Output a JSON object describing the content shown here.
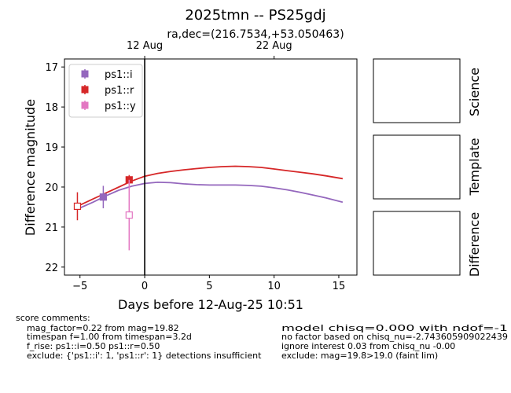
{
  "title": "2025tmn -- PS25gdj",
  "subtitle": "ra,dec=(216.7534,+53.050463)",
  "chart_data": {
    "type": "scatter",
    "xlabel": "Days before 12-Aug-25 10:51",
    "ylabel": "Difference magnitude",
    "xlim": [
      -6.2,
      16.4
    ],
    "ylim": [
      22.2,
      16.8
    ],
    "y_inverted": true,
    "x_ticks": [
      -5,
      0,
      5,
      10,
      15
    ],
    "y_ticks": [
      17,
      18,
      19,
      20,
      21,
      22
    ],
    "top_axis_ticks": [
      {
        "x": 0,
        "label": "12 Aug"
      },
      {
        "x": 10,
        "label": "22 Aug"
      }
    ],
    "vline_x": 0,
    "legend_position": "top-left",
    "series": [
      {
        "name": "ps1::i",
        "color": "#9467bd",
        "marker": "filled-square",
        "points": [
          {
            "x": -3.2,
            "y": 20.25,
            "yerr": 0.28
          }
        ]
      },
      {
        "name": "ps1::r",
        "color": "#d62728",
        "marker": "mixed-square",
        "points": [
          {
            "x": -5.2,
            "y": 20.48,
            "yerr": 0.35,
            "filled": false
          },
          {
            "x": -1.2,
            "y": 19.82,
            "yerr": 0.12,
            "filled": true
          }
        ]
      },
      {
        "name": "ps1::y",
        "color": "#e377c2",
        "marker": "open-square",
        "points": [
          {
            "x": -1.2,
            "y": 20.7,
            "yerr": 0.88
          }
        ]
      }
    ],
    "model_curves": [
      {
        "series": "ps1::r",
        "color": "#d62728",
        "x": [
          -5.2,
          -4,
          -3,
          -2,
          -1,
          0,
          1,
          2,
          3,
          4,
          5,
          6,
          7,
          8,
          9,
          10,
          11,
          12,
          13,
          14,
          15.3
        ],
        "y": [
          20.48,
          20.3,
          20.15,
          20.0,
          19.85,
          19.73,
          19.66,
          19.61,
          19.57,
          19.54,
          19.51,
          19.49,
          19.48,
          19.49,
          19.51,
          19.55,
          19.59,
          19.63,
          19.67,
          19.72,
          19.79
        ]
      },
      {
        "series": "ps1::i",
        "color": "#9467bd",
        "x": [
          -5.2,
          -4,
          -3,
          -2,
          -1,
          0,
          1,
          2,
          3,
          4,
          5,
          6,
          7,
          8,
          9,
          10,
          11,
          12,
          13,
          14,
          15.3
        ],
        "y": [
          20.55,
          20.38,
          20.22,
          20.08,
          19.98,
          19.91,
          19.88,
          19.89,
          19.92,
          19.94,
          19.95,
          19.95,
          19.95,
          19.96,
          19.98,
          20.02,
          20.07,
          20.13,
          20.2,
          20.27,
          20.38
        ]
      }
    ]
  },
  "stamps": [
    {
      "label": "Science"
    },
    {
      "label": "Template"
    },
    {
      "label": "Difference"
    }
  ],
  "comments": {
    "header": "score comments:",
    "left": [
      "mag_factor=0.22 from mag=19.82",
      "timespan f=1.00 from timespan=3.2d",
      "f_rise: ps1::i=0.50 ps1::r=0.50",
      "exclude: {'ps1::i': 1, 'ps1::r': 1} detections insufficient"
    ],
    "right": [
      "model chisq=0.000 with ndof=-1",
      "no factor based on chisq_nu=-2.743605909022439",
      "ignore interest 0.03 from chisq_nu -0.00",
      "exclude: mag=19.8>19.0 (faint lim)"
    ]
  }
}
